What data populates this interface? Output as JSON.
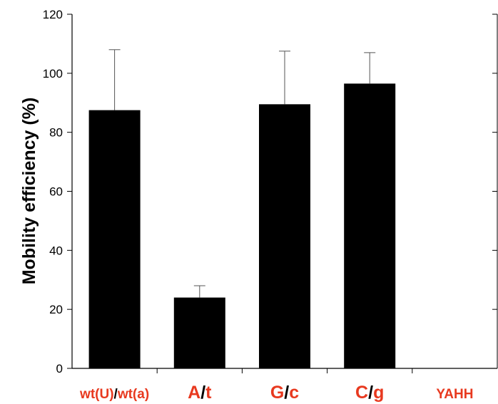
{
  "chart_data": {
    "type": "bar",
    "title": "",
    "xlabel": "",
    "ylabel": "Mobility efficiency (%)",
    "ylim": [
      0,
      120
    ],
    "yticks": [
      0,
      20,
      40,
      60,
      80,
      100,
      120
    ],
    "ytick_labels": [
      "0",
      "20",
      "40",
      "60",
      "80",
      "100",
      "120"
    ],
    "grid": false,
    "bar_color": "#000000",
    "label_accent_color": "#e8391f",
    "label_separator_color": "#000000",
    "categories": [
      {
        "label": "wt(U)/wt(a)",
        "left": "wt(U)",
        "sep": "/",
        "right": "wt(a)",
        "size": "small"
      },
      {
        "label": "A/t",
        "left": "A",
        "sep": "/",
        "right": "t",
        "size": "large"
      },
      {
        "label": "G/c",
        "left": "G",
        "sep": "/",
        "right": "c",
        "size": "large"
      },
      {
        "label": "C/g",
        "left": "C",
        "sep": "/",
        "right": "g",
        "size": "large"
      },
      {
        "label": "YAHH",
        "left": "YAHH",
        "sep": "",
        "right": "",
        "size": "small"
      }
    ],
    "values": [
      87.5,
      24,
      89.5,
      96.5,
      0
    ],
    "errors": [
      20.5,
      4,
      18,
      10.5,
      0
    ]
  }
}
